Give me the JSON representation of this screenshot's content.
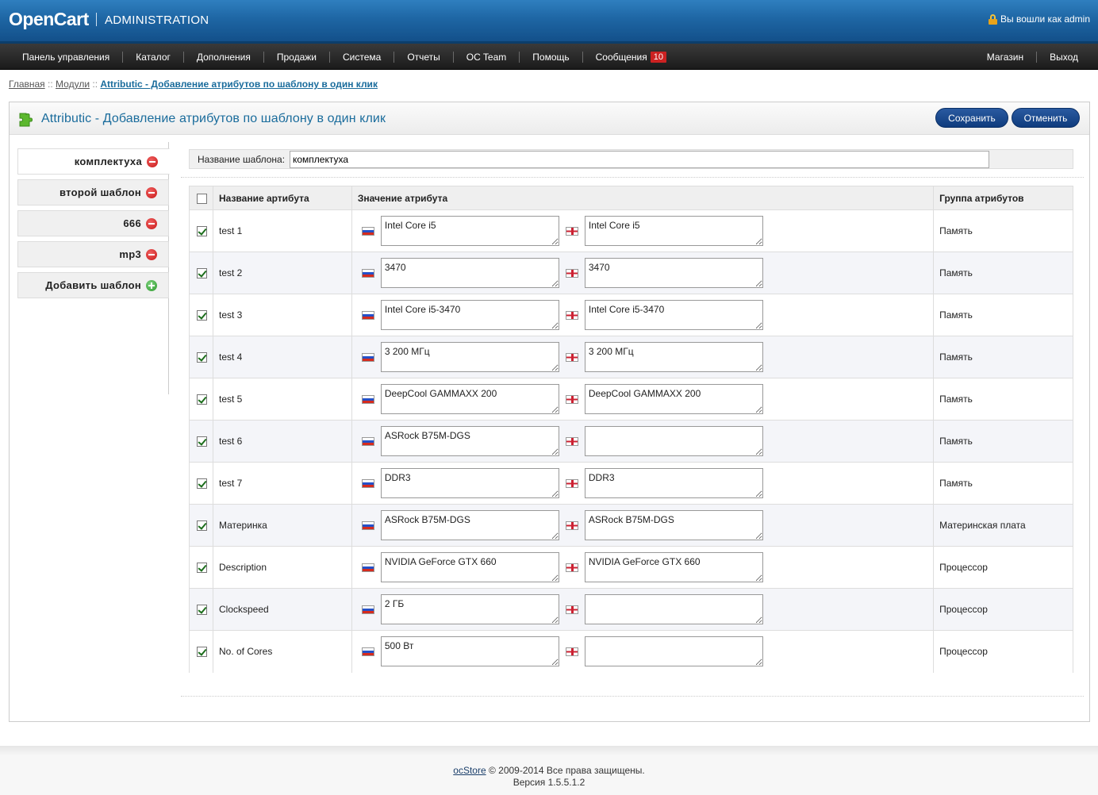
{
  "header": {
    "logo": "OpenCart",
    "subtitle": "ADMINISTRATION",
    "logged_in": "Вы вошли как admin"
  },
  "menu": {
    "left": [
      "Панель управления",
      "Каталог",
      "Дополнения",
      "Продажи",
      "Система",
      "Отчеты",
      "OC Team",
      "Помощь",
      "Сообщения"
    ],
    "messages_count": "10",
    "right": [
      "Магазин",
      "Выход"
    ]
  },
  "breadcrumb": {
    "home": "Главная",
    "modules": "Модули",
    "current": "Attributic - Добавление атрибутов по шаблону в один клик",
    "separator": "::"
  },
  "page": {
    "title": "Attributic - Добавление атрибутов по шаблону в один клик",
    "save_label": "Сохранить",
    "cancel_label": "Отменить"
  },
  "templates": {
    "items": [
      "комплектуха",
      "второй шаблон",
      "666",
      "mp3"
    ],
    "add_label": "Добавить шаблон"
  },
  "template_name": {
    "label": "Название шаблона:",
    "value": "комплектуха"
  },
  "table": {
    "headers": {
      "name": "Название артибута",
      "value": "Значение атрибута",
      "group": "Группа атрибутов"
    },
    "rows": [
      {
        "name": "test 1",
        "ru": "Intel Core i5",
        "en": "Intel Core i5",
        "group": "Память",
        "checked": true
      },
      {
        "name": "test 2",
        "ru": "3470",
        "en": "3470",
        "group": "Память",
        "checked": true
      },
      {
        "name": "test 3",
        "ru": "Intel Core i5-3470",
        "en": "Intel Core i5-3470",
        "group": "Память",
        "checked": true
      },
      {
        "name": "test 4",
        "ru": "3 200 МГц",
        "en": "3 200 МГц",
        "group": "Память",
        "checked": true
      },
      {
        "name": "test 5",
        "ru": "DeepCool GAMMAXX 200",
        "en": "DeepCool GAMMAXX 200",
        "group": "Память",
        "checked": true
      },
      {
        "name": "test 6",
        "ru": "ASRock B75M-DGS",
        "en": "",
        "group": "Память",
        "checked": true
      },
      {
        "name": "test 7",
        "ru": "DDR3",
        "en": "DDR3",
        "group": "Память",
        "checked": true
      },
      {
        "name": "Материнка",
        "ru": "ASRock B75M-DGS",
        "en": "ASRock B75M-DGS",
        "group": "Материнская плата",
        "checked": true
      },
      {
        "name": "Description",
        "ru": "NVIDIA GeForce GTX 660",
        "en": "NVIDIA GeForce GTX 660",
        "group": "Процессор",
        "checked": true
      },
      {
        "name": "Clockspeed",
        "ru": "2 ГБ",
        "en": "",
        "group": "Процессор",
        "checked": true
      },
      {
        "name": "No. of Cores",
        "ru": "500 Вт",
        "en": "",
        "group": "Процессор",
        "checked": true
      }
    ]
  },
  "footer": {
    "brand": "ocStore",
    "copyright": "© 2009-2014 Все права защищены.",
    "version": "Версия 1.5.5.1.2"
  },
  "colors": {
    "header_blue": "#1e66a4",
    "title_blue": "#1a6c9c",
    "button_blue": "#1a4c92",
    "badge_red": "#cc2222"
  }
}
